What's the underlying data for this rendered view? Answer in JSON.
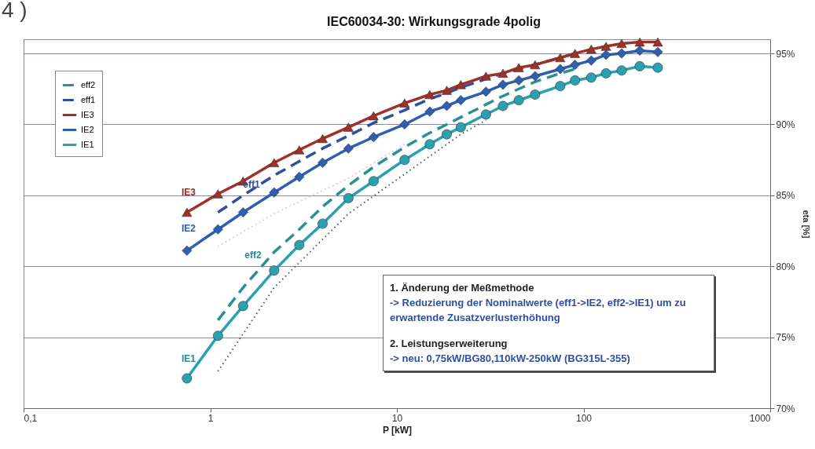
{
  "chart_data": {
    "type": "line",
    "title": "IEC60034-30: Wirkungsgrade 4polig",
    "xlabel": "P [kW]",
    "ylabel": "eta [%]",
    "log": "x",
    "xlim": [
      0.1,
      1000
    ],
    "xticks": [
      {
        "value": 0.1,
        "label": "0,1"
      },
      1,
      10,
      100,
      1000
    ],
    "ylim": [
      70,
      96
    ],
    "yticks": [
      {
        "value": 70,
        "label": "70%"
      },
      {
        "value": 75,
        "label": "75%"
      },
      {
        "value": 80,
        "label": "80%"
      },
      {
        "value": 85,
        "label": "85%"
      },
      {
        "value": 90,
        "label": "90%"
      },
      {
        "value": 95,
        "label": "95%"
      }
    ],
    "grid": "y",
    "legend": "top left",
    "series": [
      {
        "name": "eff2",
        "color": "#2a9098",
        "line_style": "dashed",
        "marker": "none",
        "x": [
          1.1,
          1.5,
          2.2,
          3,
          4,
          5.5,
          7.5,
          11,
          15,
          18.5,
          22,
          30,
          37,
          45,
          55,
          75,
          90
        ],
        "values": [
          76.2,
          78.5,
          81.0,
          82.6,
          84.2,
          85.7,
          87.0,
          88.4,
          89.4,
          90.0,
          90.5,
          91.4,
          92.0,
          92.5,
          93.0,
          93.6,
          93.9
        ]
      },
      {
        "name": "eff1",
        "color": "#2f4f9f",
        "line_style": "dashed",
        "marker": "none",
        "x": [
          1.1,
          1.5,
          2.2,
          3,
          4,
          5.5,
          7.5,
          11,
          15,
          18.5,
          22,
          30,
          37,
          45,
          55,
          75,
          90
        ],
        "values": [
          83.8,
          85.0,
          86.4,
          87.4,
          88.3,
          89.2,
          90.1,
          91.0,
          91.8,
          92.2,
          92.6,
          93.2,
          93.6,
          93.9,
          94.2,
          94.7,
          95.0
        ]
      },
      {
        "name": "IE3",
        "color": "#a0302a",
        "line_style": "solid",
        "marker": "triangle",
        "x": [
          0.75,
          1.1,
          1.5,
          2.2,
          3,
          4,
          5.5,
          7.5,
          11,
          15,
          18.5,
          22,
          30,
          37,
          45,
          55,
          75,
          90,
          110,
          132,
          160,
          200,
          250
        ],
        "values": [
          83.8,
          85.1,
          86.0,
          87.3,
          88.2,
          89.0,
          89.8,
          90.6,
          91.5,
          92.1,
          92.4,
          92.8,
          93.4,
          93.6,
          94.0,
          94.2,
          94.7,
          95.0,
          95.3,
          95.5,
          95.7,
          95.8,
          95.8
        ]
      },
      {
        "name": "IE2",
        "color": "#2f5fb0",
        "line_style": "solid",
        "marker": "diamond",
        "x": [
          0.75,
          1.1,
          1.5,
          2.2,
          3,
          4,
          5.5,
          7.5,
          11,
          15,
          18.5,
          22,
          30,
          37,
          45,
          55,
          75,
          90,
          110,
          132,
          160,
          200,
          250
        ],
        "values": [
          81.1,
          82.6,
          83.8,
          85.2,
          86.3,
          87.3,
          88.3,
          89.1,
          90.0,
          90.9,
          91.3,
          91.7,
          92.3,
          92.8,
          93.1,
          93.4,
          93.9,
          94.2,
          94.5,
          94.9,
          95.0,
          95.2,
          95.1
        ]
      },
      {
        "name": "IE1",
        "color": "#2aa0b0",
        "line_style": "solid",
        "marker": "circle",
        "x": [
          0.75,
          1.1,
          1.5,
          2.2,
          3,
          4,
          5.5,
          7.5,
          11,
          15,
          18.5,
          22,
          30,
          37,
          45,
          55,
          75,
          90,
          110,
          132,
          160,
          200,
          250
        ],
        "values": [
          72.1,
          75.1,
          77.2,
          79.7,
          81.5,
          83.0,
          84.8,
          86.0,
          87.5,
          88.6,
          89.3,
          89.8,
          90.7,
          91.3,
          91.7,
          92.1,
          92.7,
          93.1,
          93.3,
          93.6,
          93.8,
          94.1,
          94.0
        ]
      },
      {
        "color": "#555566",
        "line_style": "dotted",
        "marker": "none",
        "x": [
          1.1,
          2.2,
          5.5,
          11,
          22,
          30
        ],
        "values": [
          72.6,
          78.5,
          83.7,
          86.5,
          89.3,
          90.3
        ]
      },
      {
        "color": "#c8ccd8",
        "line_style": "dotted",
        "marker": "none",
        "x": [
          1.1,
          2.2,
          5.5,
          11
        ],
        "values": [
          81.4,
          83.7,
          86.2,
          88.6
        ]
      }
    ],
    "annotations": [
      "IE3",
      "IE2",
      "IE1",
      "eff1",
      "eff2",
      "1. Änderung der Meßmethode",
      "-> Reduzierung der Nominalwerte (eff1->IE2, eff2->IE1) um zu erwartende Zusatzverlusterhöhung",
      "2. Leistungserweiterung",
      "-> neu: 0,75kW/BG80,110kW-250kW (BG315L-355)",
      "4 )"
    ]
  }
}
